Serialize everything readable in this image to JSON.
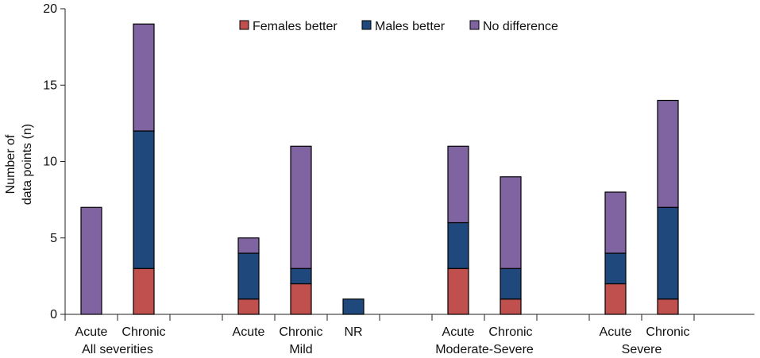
{
  "chart_data": {
    "type": "bar",
    "stacked": true,
    "title": "",
    "xlabel": "",
    "ylabel_lines": [
      "Number of",
      "data points (n)"
    ],
    "ylim": [
      0,
      20
    ],
    "yticks": [
      0,
      5,
      10,
      15,
      20
    ],
    "grid": false,
    "legend_position": "top-center",
    "groups": [
      {
        "label": "All severities",
        "categories": [
          "Acute",
          "Chronic"
        ]
      },
      {
        "label": "Mild",
        "categories": [
          "Acute",
          "Chronic",
          "NR"
        ]
      },
      {
        "label": "Moderate-Severe",
        "categories": [
          "Acute",
          "Chronic"
        ]
      },
      {
        "label": "Severe",
        "categories": [
          "Acute",
          "Chronic"
        ]
      }
    ],
    "series": [
      {
        "name": "Females better",
        "color": "#C0504D",
        "values": [
          0,
          3,
          1,
          2,
          0,
          3,
          1,
          2,
          1
        ]
      },
      {
        "name": "Males better",
        "color": "#1F497D",
        "values": [
          0,
          9,
          3,
          1,
          1,
          3,
          2,
          2,
          6
        ]
      },
      {
        "name": "No difference",
        "color": "#8064A2",
        "values": [
          7,
          7,
          1,
          8,
          0,
          5,
          6,
          4,
          7
        ]
      }
    ]
  }
}
